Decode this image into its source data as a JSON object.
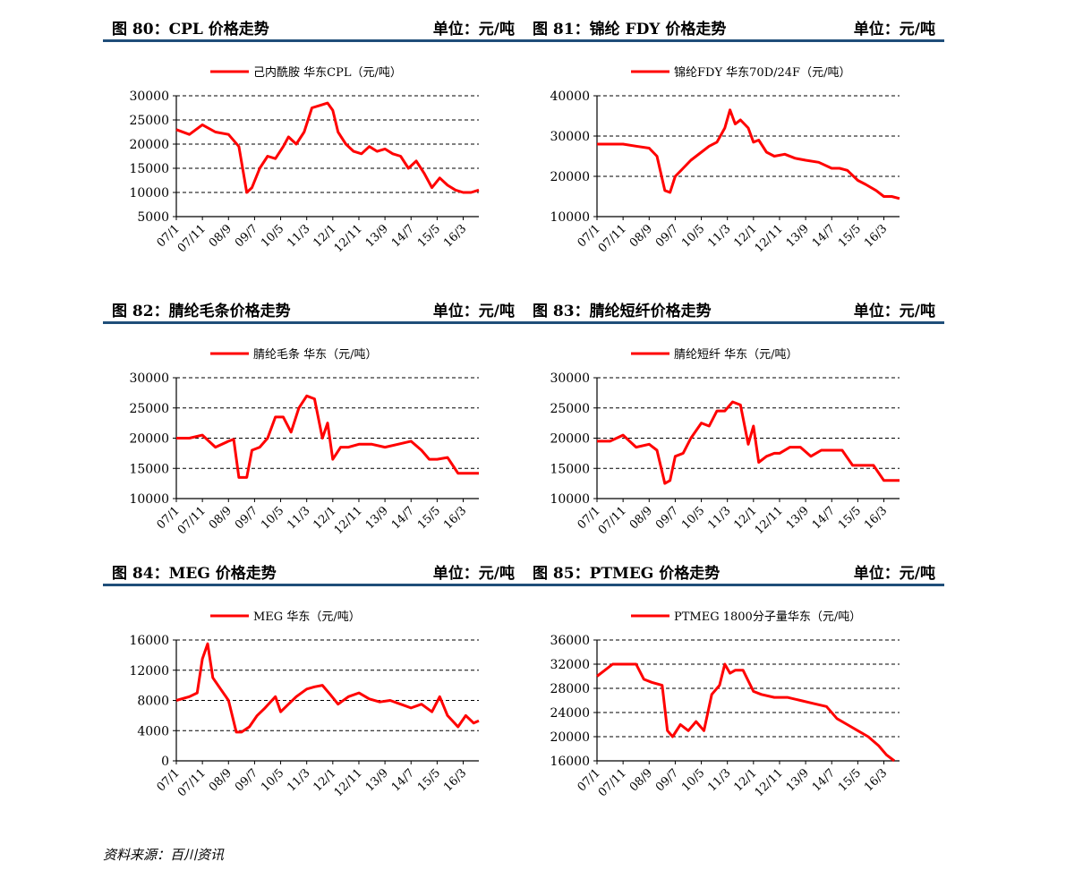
{
  "source": "资料来源：百川资讯",
  "panels": [
    {
      "caption": "图 80：CPL 价格走势",
      "unit": "单位：元/吨",
      "chart_data": {
        "type": "line",
        "legend": "己内酰胺 华东CPL（元/吨）",
        "series_name": "己内酰胺 华东CPL（元/吨）",
        "color": "#ff0000",
        "ylim": [
          5000,
          30000
        ],
        "yticks": [
          5000,
          10000,
          15000,
          20000,
          25000,
          30000
        ],
        "yticklabels": [
          "5000",
          "10000",
          "15000",
          "20000",
          "25000",
          "30000"
        ],
        "categories": [
          "07/1",
          "07/11",
          "08/9",
          "09/7",
          "10/5",
          "11/3",
          "12/1",
          "12/11",
          "13/9",
          "14/7",
          "15/5",
          "16/3"
        ],
        "x": [
          0,
          0.5,
          1,
          1.5,
          2,
          2.4,
          2.7,
          2.9,
          3.2,
          3.5,
          3.8,
          4.1,
          4.3,
          4.6,
          4.9,
          5.2,
          5.5,
          5.8,
          6.0,
          6.2,
          6.5,
          6.8,
          7.1,
          7.4,
          7.7,
          8.0,
          8.3,
          8.6,
          8.9,
          9.2,
          9.5,
          9.8,
          10.1,
          10.4,
          10.7,
          11.0,
          11.3,
          11.6
        ],
        "values": [
          23000,
          22000,
          24000,
          22500,
          22000,
          19500,
          10000,
          11000,
          15000,
          17500,
          17000,
          19500,
          21500,
          20000,
          22500,
          27500,
          28000,
          28500,
          27000,
          22500,
          20000,
          18500,
          18000,
          19500,
          18500,
          19000,
          18000,
          17500,
          15000,
          16500,
          14000,
          11000,
          13000,
          11500,
          10500,
          10000,
          10000,
          10500
        ]
      }
    },
    {
      "caption": "图 81：锦纶 FDY 价格走势",
      "unit": "单位：元/吨",
      "chart_data": {
        "type": "line",
        "legend": "锦纶FDY 华东70D/24F（元/吨）",
        "series_name": "锦纶FDY 华东70D/24F（元/吨）",
        "color": "#ff0000",
        "ylim": [
          10000,
          40000
        ],
        "yticks": [
          10000,
          20000,
          30000,
          40000
        ],
        "yticklabels": [
          "10000",
          "20000",
          "30000",
          "40000"
        ],
        "categories": [
          "07/1",
          "07/11",
          "08/9",
          "09/7",
          "10/5",
          "11/3",
          "12/1",
          "12/11",
          "13/9",
          "14/7",
          "15/5",
          "16/3"
        ],
        "x": [
          0,
          0.5,
          1,
          1.5,
          2,
          2.3,
          2.6,
          2.8,
          3.0,
          3.3,
          3.6,
          4.0,
          4.3,
          4.6,
          4.9,
          5.1,
          5.3,
          5.5,
          5.8,
          6.0,
          6.2,
          6.5,
          6.8,
          7.2,
          7.6,
          8.0,
          8.5,
          9.0,
          9.3,
          9.6,
          10.0,
          10.3,
          10.7,
          11.0,
          11.3,
          11.6
        ],
        "values": [
          28000,
          28000,
          28000,
          27500,
          27000,
          25000,
          16500,
          16000,
          20000,
          22000,
          24000,
          26000,
          27500,
          28500,
          32000,
          36500,
          33000,
          34000,
          32000,
          28500,
          29000,
          26000,
          25000,
          25500,
          24500,
          24000,
          23500,
          22000,
          22000,
          21500,
          19000,
          18000,
          16500,
          15000,
          15000,
          14500
        ]
      }
    },
    {
      "caption": "图 82：腈纶毛条价格走势",
      "unit": "单位：元/吨",
      "chart_data": {
        "type": "line",
        "legend": "腈纶毛条 华东（元/吨）",
        "series_name": "腈纶毛条 华东（元/吨）",
        "color": "#ff0000",
        "ylim": [
          10000,
          30000
        ],
        "yticks": [
          10000,
          15000,
          20000,
          25000,
          30000
        ],
        "yticklabels": [
          "10000",
          "15000",
          "20000",
          "25000",
          "30000"
        ],
        "categories": [
          "07/1",
          "07/11",
          "08/9",
          "09/7",
          "10/5",
          "11/3",
          "12/1",
          "12/11",
          "13/9",
          "14/7",
          "15/5",
          "16/3"
        ],
        "x": [
          0,
          0.5,
          1,
          1.5,
          2,
          2.2,
          2.4,
          2.7,
          2.9,
          3.2,
          3.5,
          3.8,
          4.1,
          4.4,
          4.7,
          5.0,
          5.3,
          5.6,
          5.8,
          6.0,
          6.3,
          6.6,
          7.0,
          7.5,
          8.0,
          8.5,
          9.0,
          9.4,
          9.7,
          10.0,
          10.4,
          10.8,
          11.2,
          11.6
        ],
        "values": [
          20000,
          20000,
          20500,
          18500,
          19500,
          19800,
          13500,
          13500,
          18000,
          18500,
          20000,
          23500,
          23500,
          21000,
          25000,
          27000,
          26500,
          20000,
          22500,
          16500,
          18500,
          18500,
          19000,
          19000,
          18500,
          19000,
          19500,
          18000,
          16500,
          16500,
          16800,
          14200,
          14200,
          14200
        ]
      }
    },
    {
      "caption": "图 83：腈纶短纤价格走势",
      "unit": "单位：元/吨",
      "chart_data": {
        "type": "line",
        "legend": "腈纶短纤 华东（元/吨）",
        "series_name": "腈纶短纤 华东（元/吨）",
        "color": "#ff0000",
        "ylim": [
          10000,
          30000
        ],
        "yticks": [
          10000,
          15000,
          20000,
          25000,
          30000
        ],
        "yticklabels": [
          "10000",
          "15000",
          "20000",
          "25000",
          "30000"
        ],
        "categories": [
          "07/1",
          "07/11",
          "08/9",
          "09/7",
          "10/5",
          "11/3",
          "12/1",
          "12/11",
          "13/9",
          "14/7",
          "15/5",
          "16/3"
        ],
        "x": [
          0,
          0.5,
          1,
          1.5,
          2,
          2.3,
          2.6,
          2.8,
          3.0,
          3.3,
          3.6,
          4.0,
          4.3,
          4.6,
          4.9,
          5.2,
          5.5,
          5.8,
          6.0,
          6.2,
          6.5,
          6.8,
          7.0,
          7.4,
          7.8,
          8.2,
          8.6,
          9.0,
          9.4,
          9.8,
          10.2,
          10.6,
          11.0,
          11.3,
          11.6
        ],
        "values": [
          19500,
          19500,
          20500,
          18500,
          19000,
          18000,
          12500,
          13000,
          17000,
          17500,
          20000,
          22500,
          22000,
          24500,
          24500,
          26000,
          25500,
          19000,
          22000,
          16000,
          17000,
          17500,
          17500,
          18500,
          18500,
          17000,
          18000,
          18000,
          18000,
          15500,
          15500,
          15500,
          13000,
          13000,
          13000
        ]
      }
    },
    {
      "caption": "图 84：MEG 价格走势",
      "unit": "单位：元/吨",
      "chart_data": {
        "type": "line",
        "legend": "MEG 华东（元/吨）",
        "series_name": "MEG 华东（元/吨）",
        "color": "#ff0000",
        "ylim": [
          0,
          16000
        ],
        "yticks": [
          0,
          4000,
          8000,
          12000,
          16000
        ],
        "yticklabels": [
          "0",
          "4000",
          "8000",
          "12000",
          "16000"
        ],
        "categories": [
          "07/1",
          "07/11",
          "08/9",
          "09/7",
          "10/5",
          "11/3",
          "12/1",
          "12/11",
          "13/9",
          "14/7",
          "15/5",
          "16/3"
        ],
        "x": [
          0,
          0.5,
          0.8,
          1.0,
          1.2,
          1.4,
          1.7,
          2.0,
          2.3,
          2.5,
          2.8,
          3.1,
          3.4,
          3.8,
          4.0,
          4.3,
          4.6,
          5.0,
          5.3,
          5.6,
          5.9,
          6.2,
          6.6,
          7.0,
          7.4,
          7.8,
          8.2,
          8.6,
          9.0,
          9.4,
          9.8,
          10.1,
          10.4,
          10.8,
          11.1,
          11.4,
          11.6
        ],
        "values": [
          8000,
          8500,
          9000,
          13500,
          15500,
          11000,
          9500,
          8000,
          3800,
          3800,
          4500,
          6000,
          7000,
          8500,
          6500,
          7500,
          8500,
          9500,
          9800,
          10000,
          8800,
          7500,
          8500,
          9000,
          8200,
          7800,
          8000,
          7500,
          7000,
          7500,
          6500,
          8500,
          6000,
          4500,
          6000,
          5000,
          5300
        ]
      }
    },
    {
      "caption": "图 85：PTMEG 价格走势",
      "unit": "单位：元/吨",
      "chart_data": {
        "type": "line",
        "legend": "PTMEG 1800分子量华东（元/吨）",
        "series_name": "PTMEG 1800分子量华东（元/吨）",
        "color": "#ff0000",
        "ylim": [
          16000,
          36000
        ],
        "yticks": [
          16000,
          20000,
          24000,
          28000,
          32000,
          36000
        ],
        "yticklabels": [
          "16000",
          "20000",
          "24000",
          "28000",
          "32000",
          "36000"
        ],
        "categories": [
          "07/1",
          "07/11",
          "08/9",
          "09/7",
          "10/5",
          "11/3",
          "12/1",
          "12/11",
          "13/9",
          "14/7",
          "15/5",
          "16/3"
        ],
        "x": [
          0,
          0.3,
          0.6,
          1.0,
          1.5,
          1.8,
          2.1,
          2.5,
          2.7,
          2.9,
          3.2,
          3.5,
          3.8,
          4.1,
          4.4,
          4.7,
          4.9,
          5.1,
          5.3,
          5.6,
          6.0,
          6.3,
          6.8,
          7.3,
          7.8,
          8.3,
          8.8,
          9.2,
          9.6,
          10.0,
          10.4,
          10.8,
          11.1,
          11.4
        ],
        "values": [
          30000,
          31000,
          32000,
          32000,
          32000,
          29500,
          29000,
          28500,
          21000,
          20000,
          22000,
          21000,
          22500,
          21000,
          27000,
          28500,
          32000,
          30500,
          31000,
          31000,
          27500,
          27000,
          26500,
          26500,
          26000,
          25500,
          25000,
          23000,
          22000,
          21000,
          20000,
          18500,
          17000,
          16000
        ]
      }
    }
  ]
}
